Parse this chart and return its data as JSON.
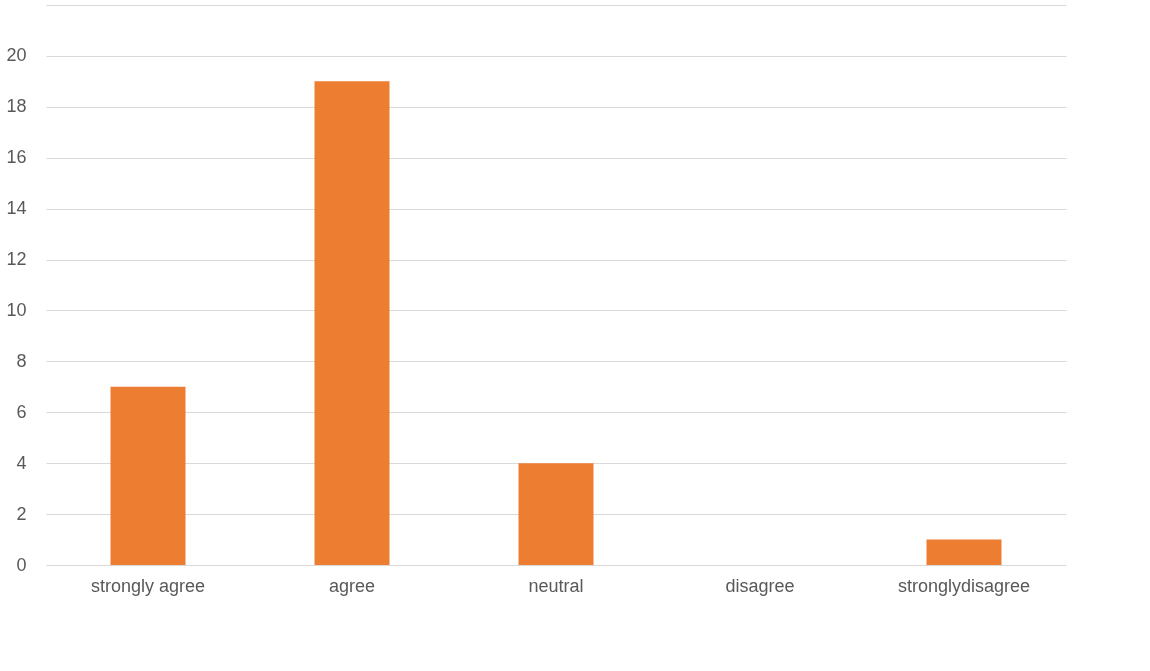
{
  "chart_data": {
    "type": "bar",
    "categories": [
      "strongly agree",
      "agree",
      "neutral",
      "disagree",
      "stronglydisagree"
    ],
    "values": [
      7,
      19,
      4,
      0,
      1
    ],
    "color": "#ed7d31",
    "ylim": [
      0,
      22
    ],
    "yticks": [
      0,
      2,
      4,
      6,
      8,
      10,
      12,
      14,
      16,
      18,
      20,
      {
        "value": 22,
        "label": null
      }
    ],
    "grid": "y"
  }
}
